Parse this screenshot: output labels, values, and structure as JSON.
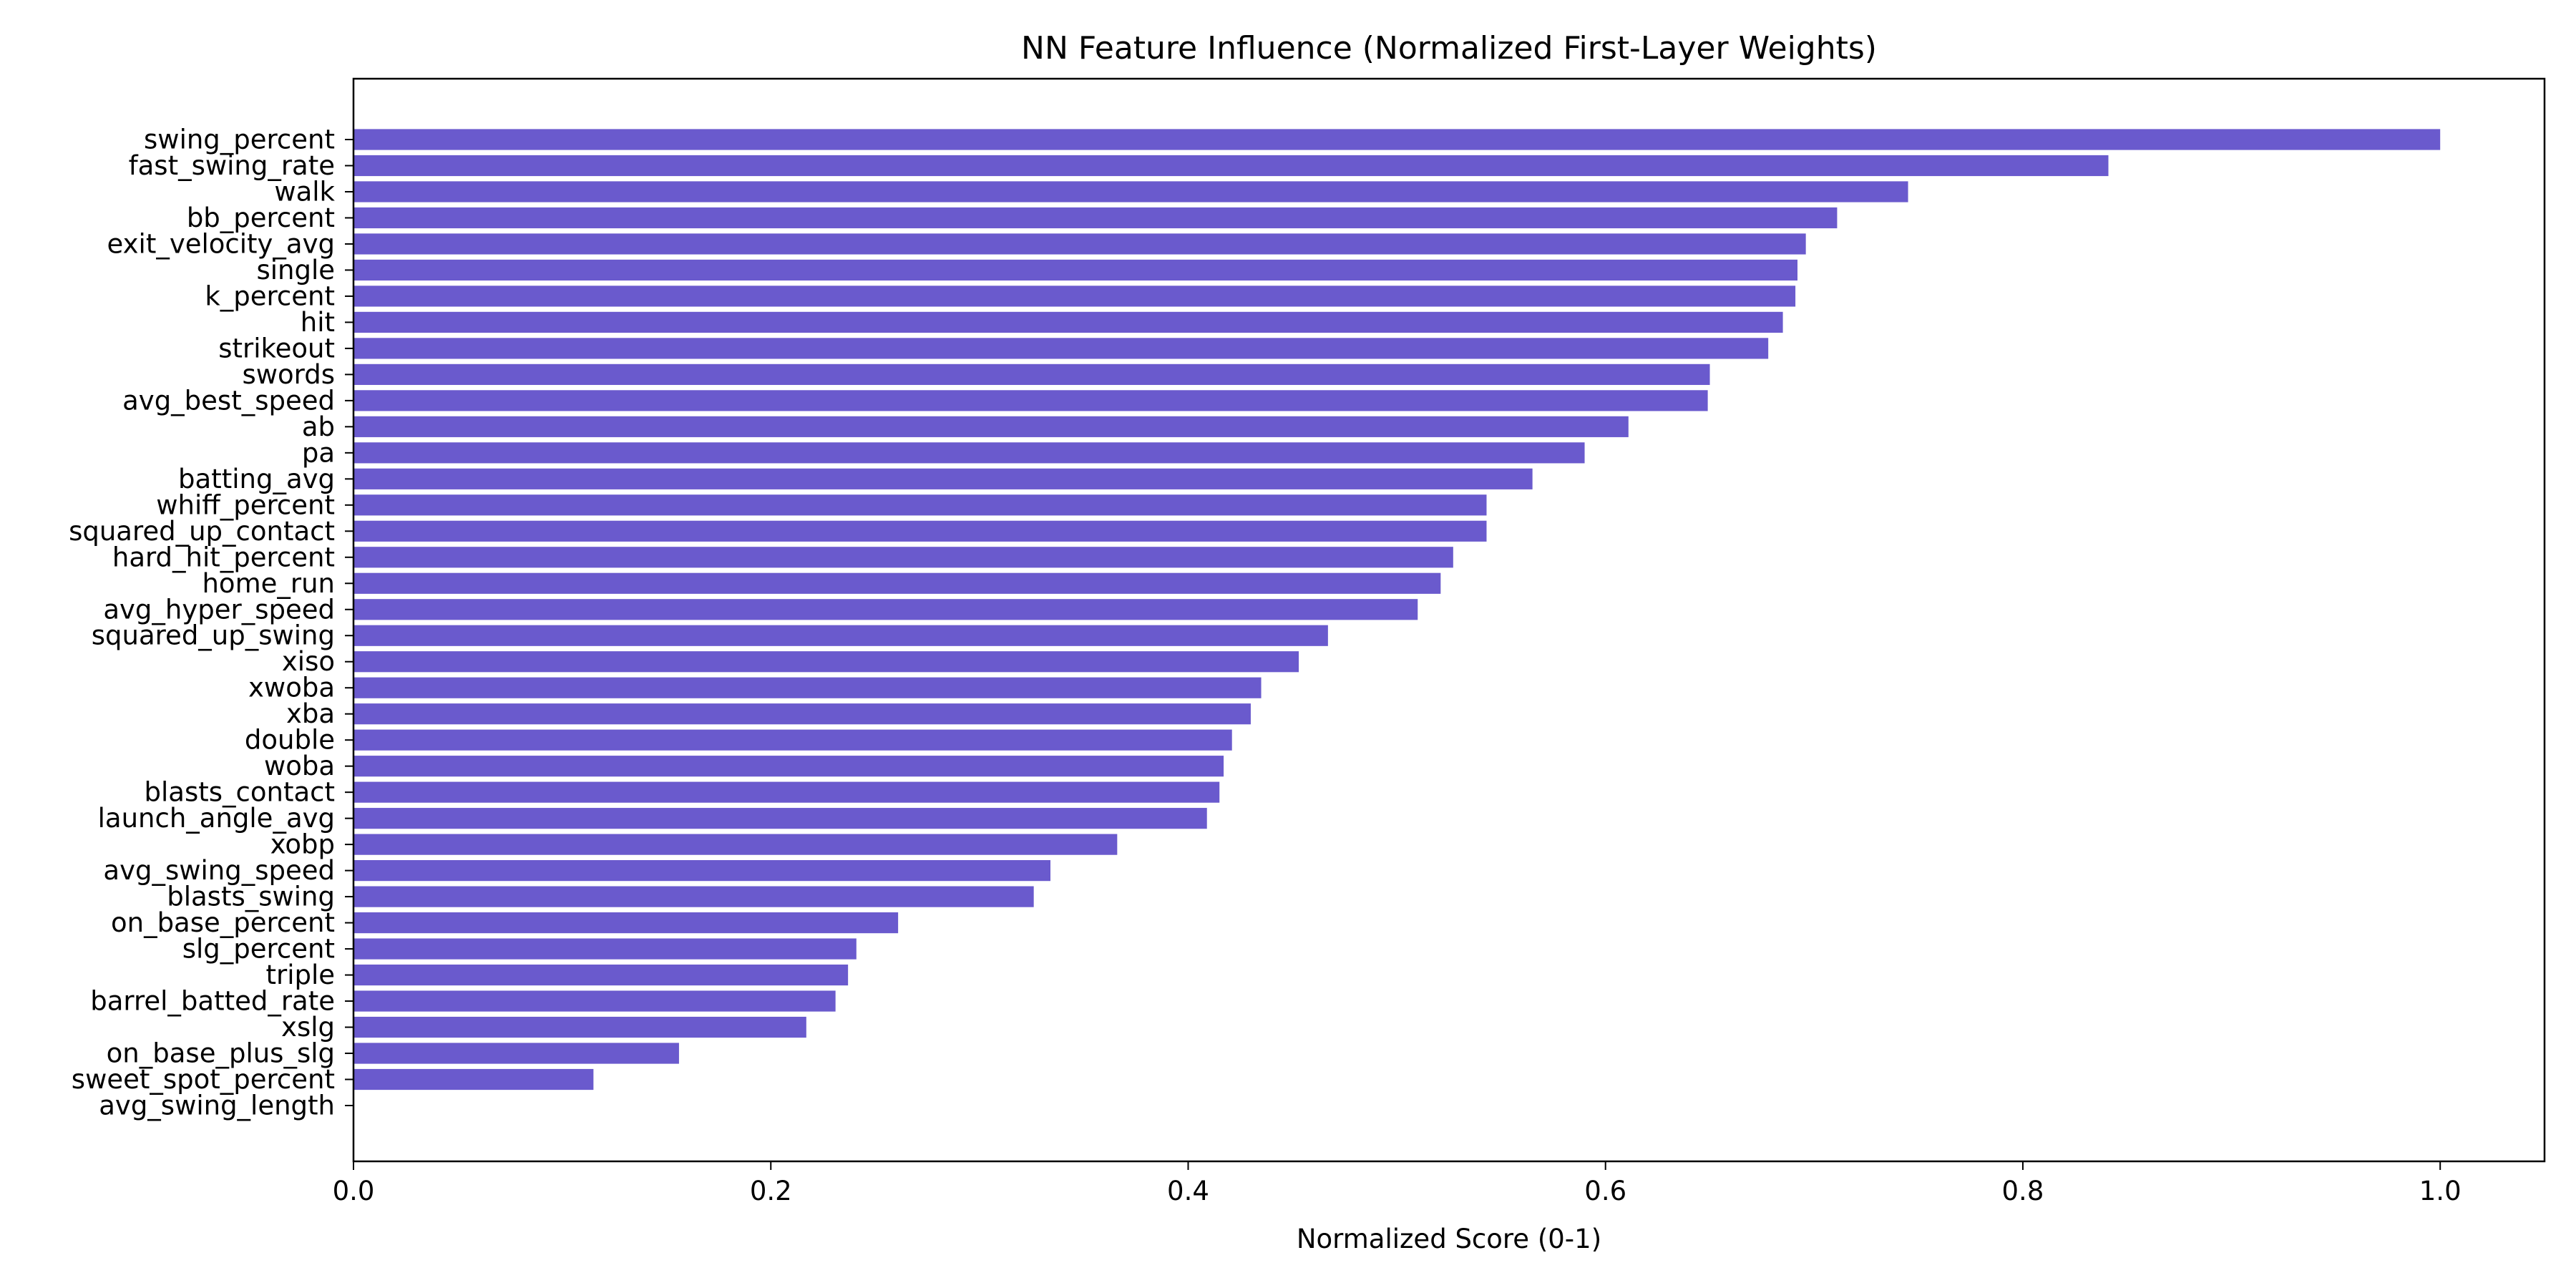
{
  "chart_data": {
    "type": "bar",
    "orientation": "horizontal",
    "title": "NN Feature Influence (Normalized First-Layer Weights)",
    "xlabel": "Normalized Score (0-1)",
    "ylabel": "",
    "xlim": [
      0,
      1.05
    ],
    "xticks": [
      0.0,
      0.2,
      0.4,
      0.6,
      0.8,
      1.0
    ],
    "xtick_labels": [
      "0.0",
      "0.2",
      "0.4",
      "0.6",
      "0.8",
      "1.0"
    ],
    "grid": false,
    "legend": "none",
    "bar_color": "#6a5acd",
    "categories": [
      "swing_percent",
      "fast_swing_rate",
      "walk",
      "bb_percent",
      "exit_velocity_avg",
      "single",
      "k_percent",
      "hit",
      "strikeout",
      "swords",
      "avg_best_speed",
      "ab",
      "pa",
      "batting_avg",
      "whiff_percent",
      "squared_up_contact",
      "hard_hit_percent",
      "home_run",
      "avg_hyper_speed",
      "squared_up_swing",
      "xiso",
      "xwoba",
      "xba",
      "double",
      "woba",
      "blasts_contact",
      "launch_angle_avg",
      "xobp",
      "avg_swing_speed",
      "blasts_swing",
      "on_base_percent",
      "slg_percent",
      "triple",
      "barrel_batted_rate",
      "xslg",
      "on_base_plus_slg",
      "sweet_spot_percent",
      "avg_swing_length"
    ],
    "values": [
      1.0,
      0.841,
      0.745,
      0.711,
      0.696,
      0.692,
      0.691,
      0.685,
      0.678,
      0.65,
      0.649,
      0.611,
      0.59,
      0.565,
      0.543,
      0.543,
      0.527,
      0.521,
      0.51,
      0.467,
      0.453,
      0.435,
      0.43,
      0.421,
      0.417,
      0.415,
      0.409,
      0.366,
      0.334,
      0.326,
      0.261,
      0.241,
      0.237,
      0.231,
      0.217,
      0.156,
      0.115,
      0.0
    ]
  }
}
